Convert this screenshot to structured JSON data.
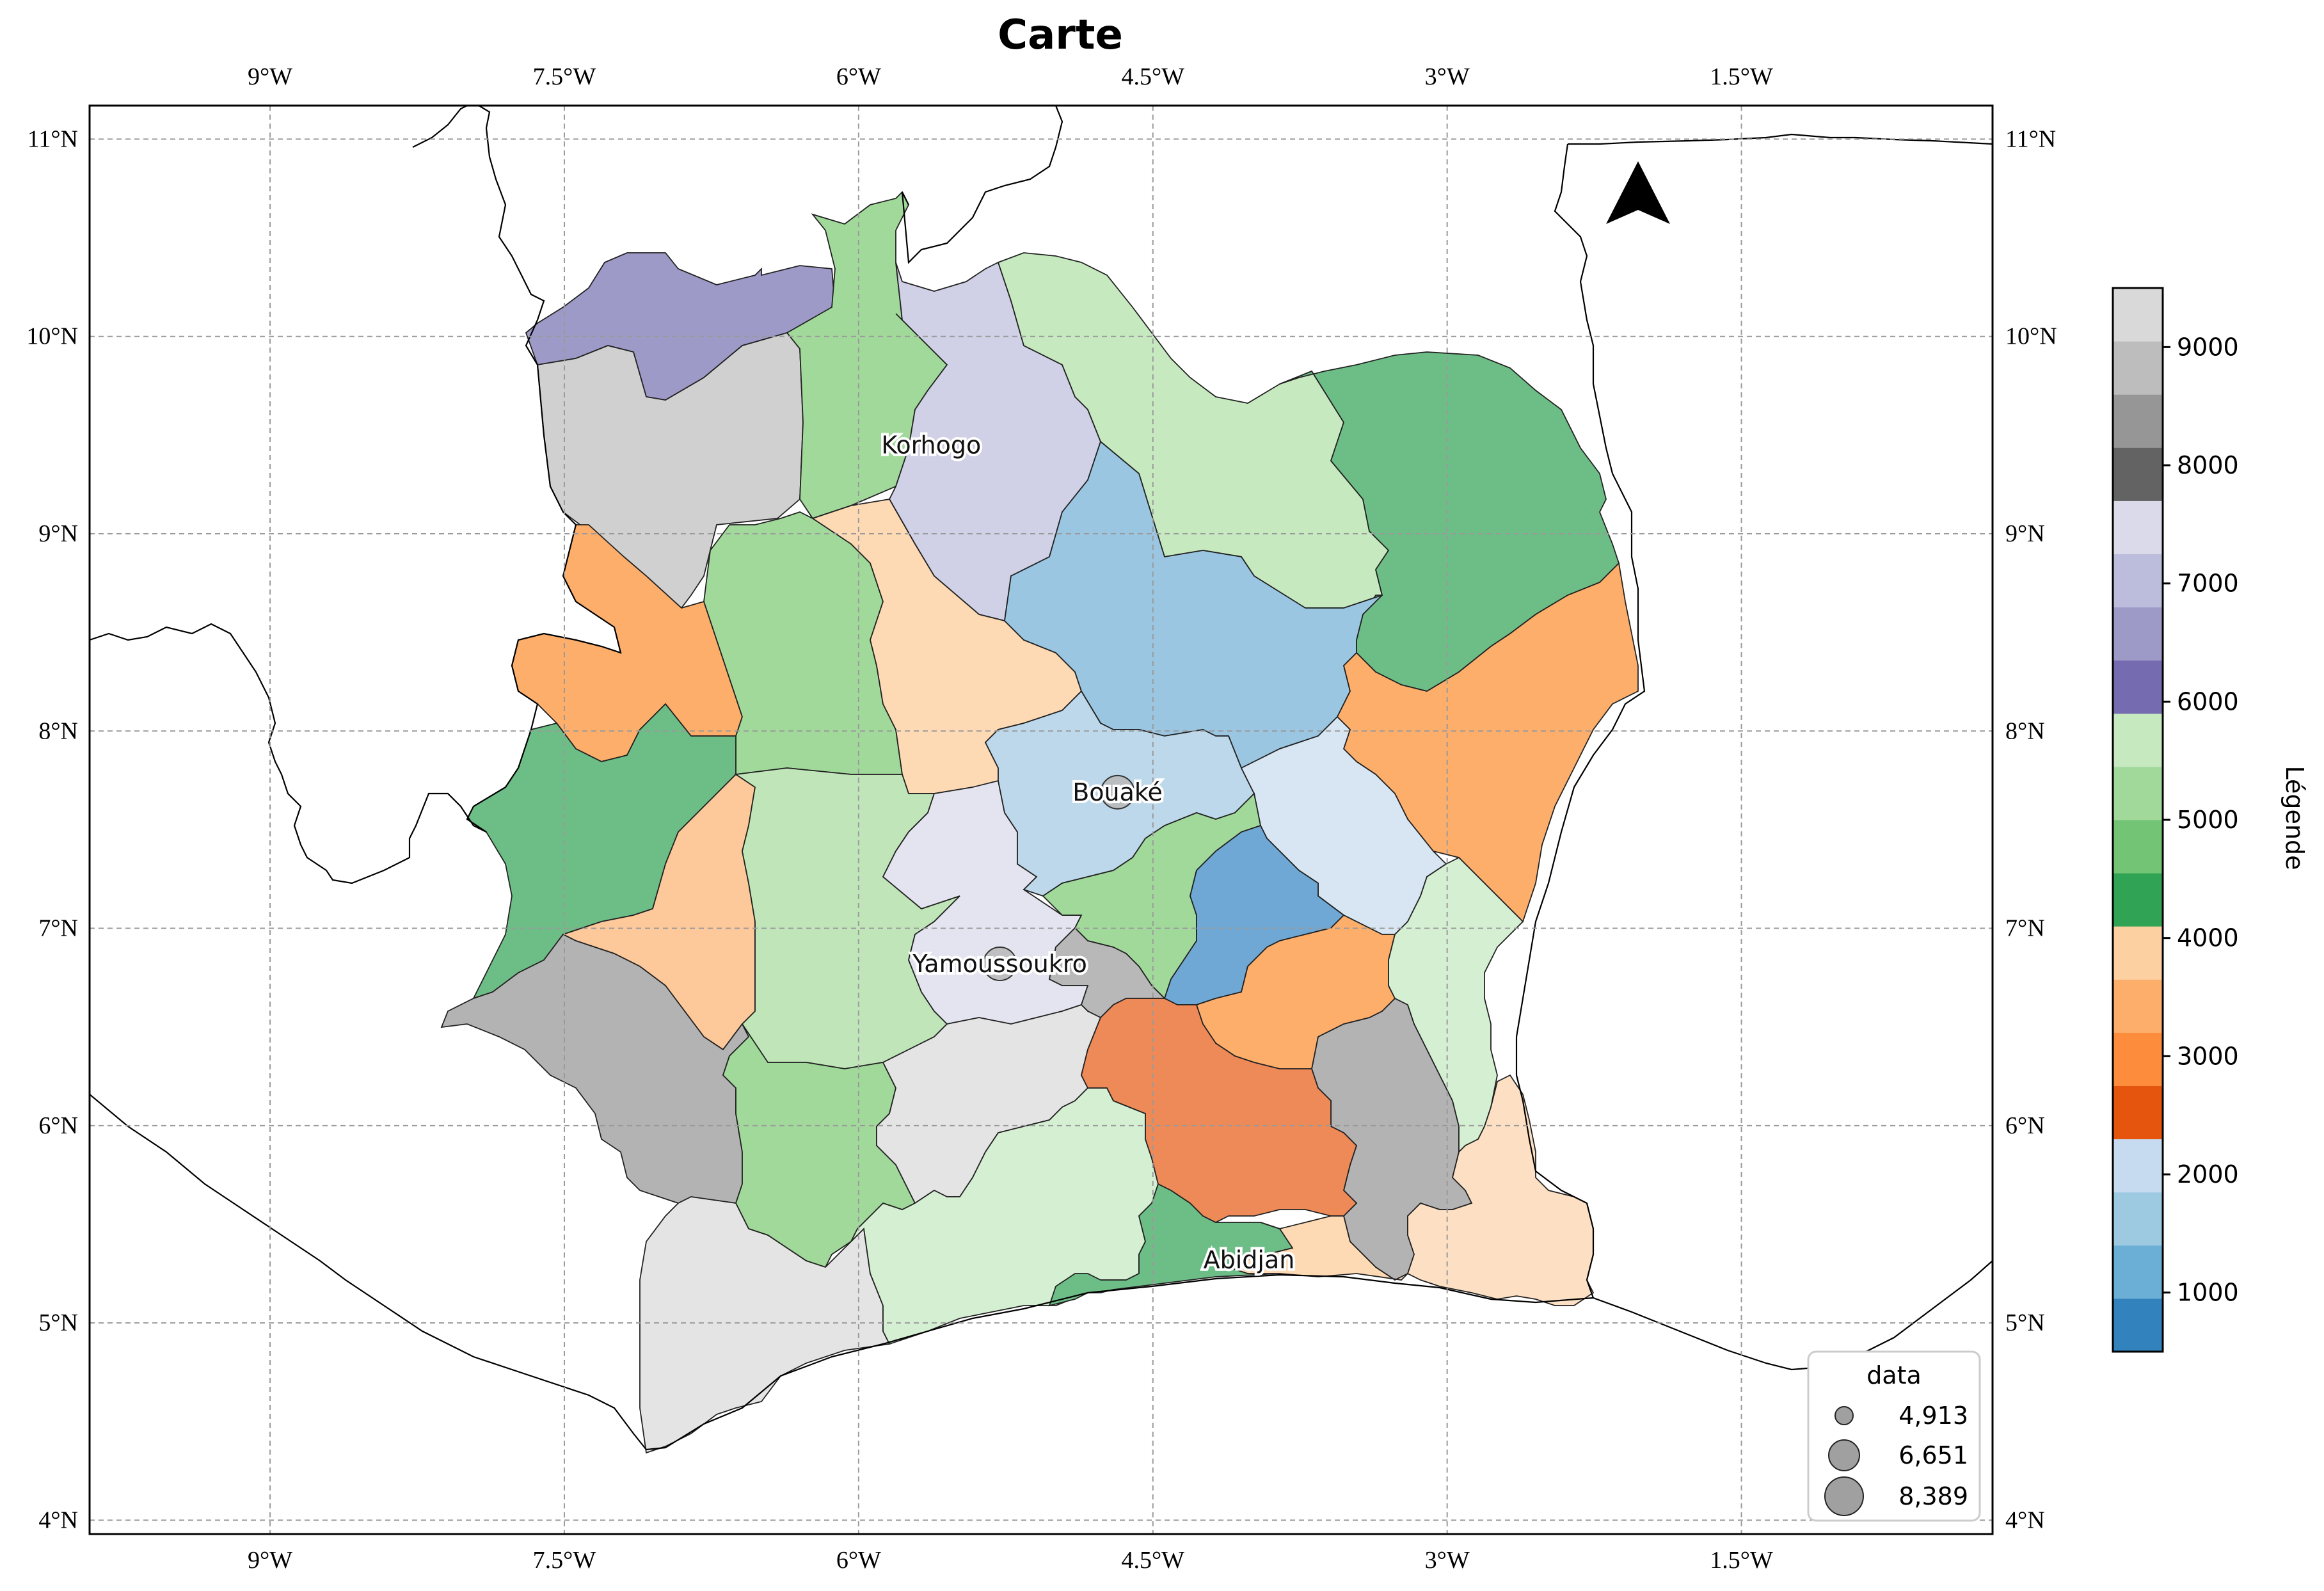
{
  "title": "Carte",
  "lon_ticks": [
    "9°W",
    "7.5°W",
    "6°W",
    "4.5°W",
    "3°W",
    "1.5°W"
  ],
  "lat_ticks": [
    "11°N",
    "10°N",
    "9°N",
    "8°N",
    "7°N",
    "6°N",
    "5°N",
    "4°N"
  ],
  "cities": [
    {
      "name": "Korhogo",
      "lon": -5.63,
      "lat": 9.45,
      "marker": false
    },
    {
      "name": "Bouaké",
      "lon": -4.68,
      "lat": 7.69,
      "marker": true
    },
    {
      "name": "Yamoussoukro",
      "lon": -5.28,
      "lat": 6.82,
      "marker": true
    },
    {
      "name": "Abidjan",
      "lon": -4.01,
      "lat": 5.32,
      "marker": false
    }
  ],
  "size_legend": {
    "title": "data",
    "entries": [
      "4,913",
      "6,651",
      "8,389"
    ]
  },
  "colorbar": {
    "label": "Légende",
    "ticks": [
      "1000",
      "2000",
      "3000",
      "4000",
      "5000",
      "6000",
      "7000",
      "8000",
      "9000"
    ],
    "min": 500,
    "max": 9500,
    "bins": [
      {
        "from": 500,
        "to": 950,
        "color": "#3182bd"
      },
      {
        "from": 950,
        "to": 1400,
        "color": "#6baed6"
      },
      {
        "from": 1400,
        "to": 1850,
        "color": "#9ecae1"
      },
      {
        "from": 1850,
        "to": 2300,
        "color": "#c6dbef"
      },
      {
        "from": 2300,
        "to": 2750,
        "color": "#e6550d"
      },
      {
        "from": 2750,
        "to": 3200,
        "color": "#fd8d3c"
      },
      {
        "from": 3200,
        "to": 3650,
        "color": "#fdae6b"
      },
      {
        "from": 3650,
        "to": 4100,
        "color": "#fdd0a2"
      },
      {
        "from": 4100,
        "to": 4550,
        "color": "#31a354"
      },
      {
        "from": 4550,
        "to": 5000,
        "color": "#74c476"
      },
      {
        "from": 5000,
        "to": 5450,
        "color": "#a1d99b"
      },
      {
        "from": 5450,
        "to": 5900,
        "color": "#c7e9c0"
      },
      {
        "from": 5900,
        "to": 6350,
        "color": "#756bb1"
      },
      {
        "from": 6350,
        "to": 6800,
        "color": "#9e9ac8"
      },
      {
        "from": 6800,
        "to": 7250,
        "color": "#bcbddc"
      },
      {
        "from": 7250,
        "to": 7700,
        "color": "#dadaeb"
      },
      {
        "from": 7700,
        "to": 8150,
        "color": "#636363"
      },
      {
        "from": 8150,
        "to": 8600,
        "color": "#969696"
      },
      {
        "from": 8600,
        "to": 9050,
        "color": "#bdbdbd"
      },
      {
        "from": 9050,
        "to": 9500,
        "color": "#d9d9d9"
      }
    ]
  },
  "colors": {
    "regions": {
      "purple_nw": "#9e9ac8",
      "grey_nw": "#d0d0d0",
      "green_n": "#a1d99b",
      "lavender_n": "#d0d0e6",
      "ltgreen_ne": "#c7e9c0",
      "green_ne": "#6dbe86",
      "orange_w": "#fdae6b",
      "green_w": "#a1d99b",
      "peach_c": "#fdd9b4",
      "blue_c": "#9ac6e2",
      "orange_e": "#fdae6b",
      "green_sw": "#6dbe86",
      "peach_w": "#fdc89a",
      "ltgreen_c": "#c0e5b9",
      "lavender_c": "#e4e4f1",
      "ltblue_c": "#bcd8ea",
      "ltblue_e": "#d8e6f3",
      "blue_e": "#6fa8d4",
      "grey_yam": "#b8b8b8",
      "grey_sw": "#b3b3b3",
      "green_s": "#a1d99b",
      "ltgrey_s": "#e4e4e4",
      "ltgreen_s": "#d5efd2",
      "orange_s": "#ed8a58",
      "grey_se": "#b3b3b3",
      "peach_se": "#fde0c3",
      "green_coast": "#6dbe86"
    }
  }
}
